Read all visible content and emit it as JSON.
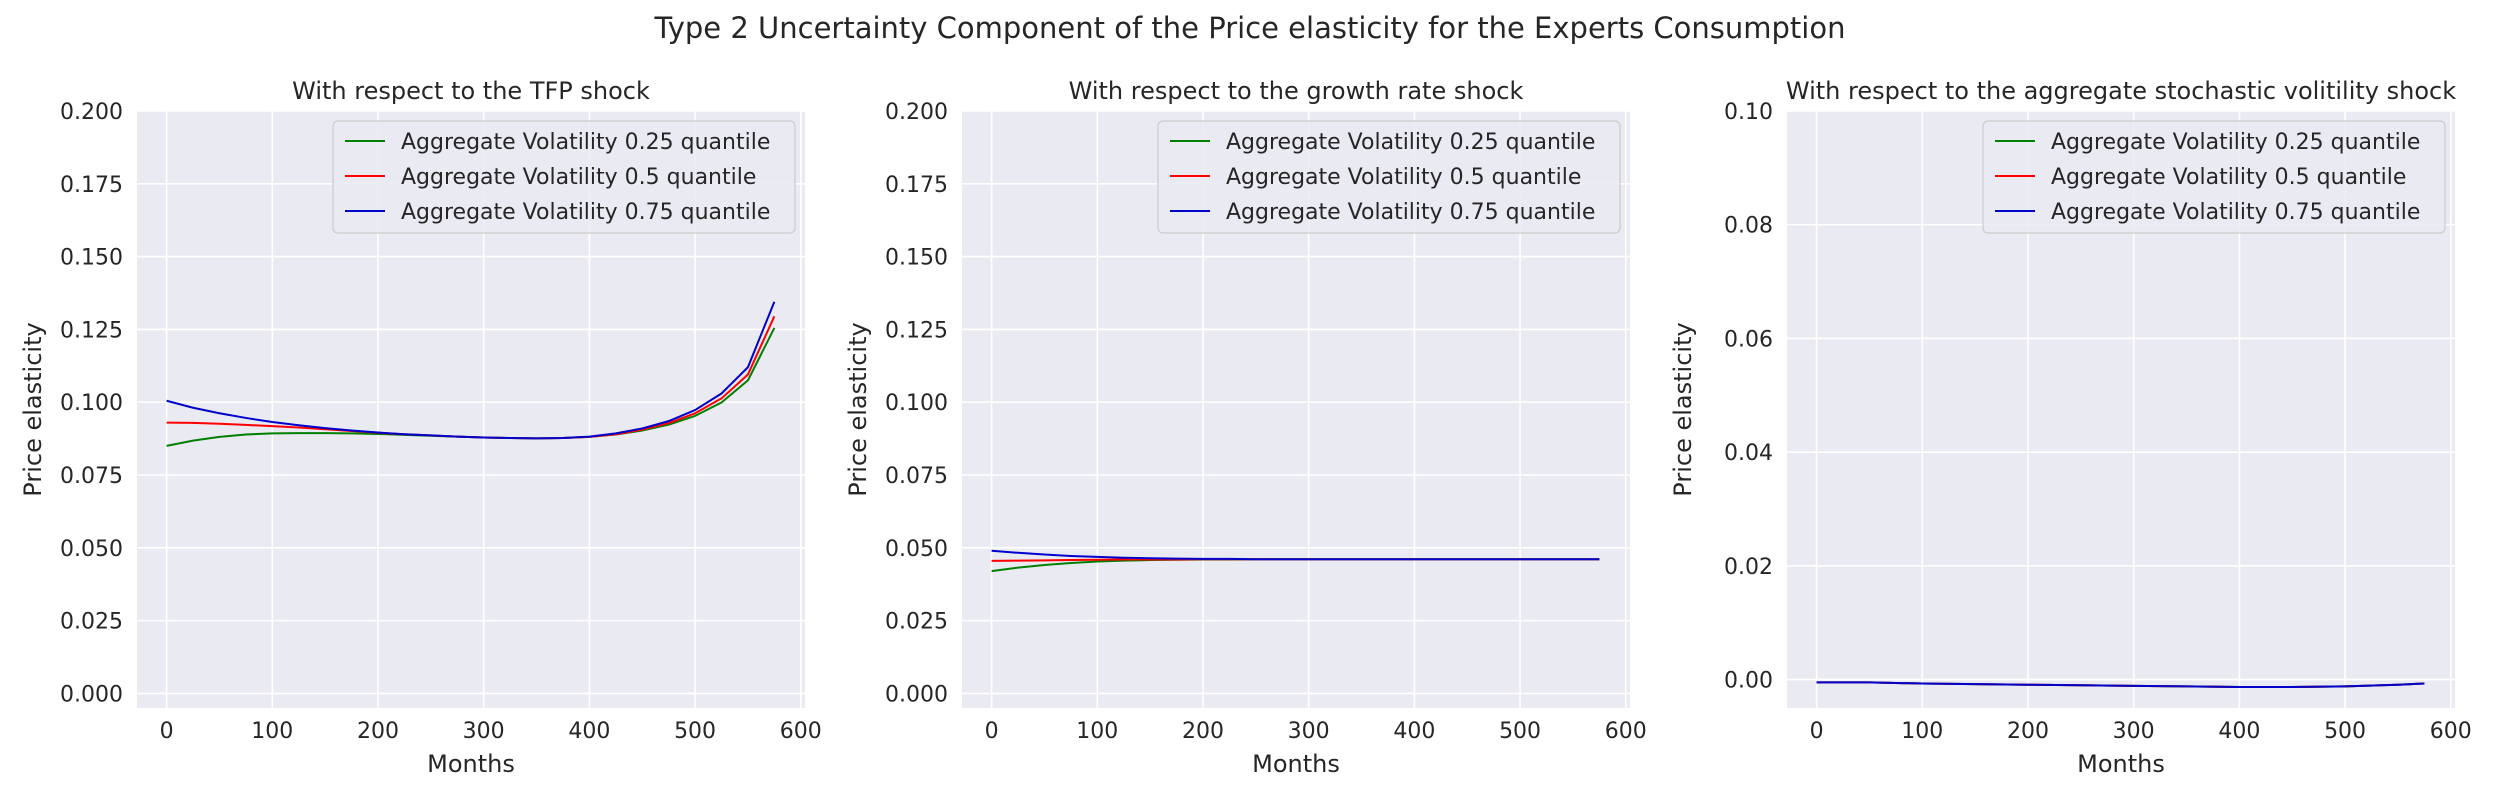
{
  "figure": {
    "title": "Type 2 Uncertainty Component of the Price elasticity for the Experts Consumption"
  },
  "style": {
    "axes_background": "#eaeaf2",
    "grid_color": "#ffffff",
    "text_color": "#262626",
    "series_colors": [
      "#008000",
      "#ff0000",
      "#0000cd"
    ]
  },
  "chart_data": [
    {
      "type": "line",
      "title": "With respect to the TFP shock",
      "xlabel": "Months",
      "ylabel": "Price elasticity",
      "xlim": [
        -28,
        604
      ],
      "ylim": [
        -0.005,
        0.2
      ],
      "xticks": [
        0,
        100,
        200,
        300,
        400,
        500,
        600
      ],
      "yticks": [
        0.0,
        0.025,
        0.05,
        0.075,
        0.1,
        0.125,
        0.15,
        0.175,
        0.2
      ],
      "ytick_labels": [
        "0.000",
        "0.025",
        "0.050",
        "0.075",
        "0.100",
        "0.125",
        "0.150",
        "0.175",
        "0.200"
      ],
      "grid": true,
      "legend": "top-right",
      "x": [
        0,
        25,
        50,
        75,
        100,
        125,
        150,
        175,
        200,
        225,
        250,
        275,
        300,
        325,
        350,
        375,
        400,
        425,
        450,
        475,
        500,
        525,
        550,
        575
      ],
      "series": [
        {
          "name": "Aggregate Volatility 0.25 quantile",
          "color": "#008000",
          "values": [
            0.085,
            0.0868,
            0.0881,
            0.0889,
            0.0893,
            0.0894,
            0.0894,
            0.0893,
            0.0891,
            0.0888,
            0.0885,
            0.0882,
            0.0879,
            0.0877,
            0.0876,
            0.0877,
            0.0881,
            0.0889,
            0.0903,
            0.0923,
            0.0953,
            0.0999,
            0.1075,
            0.1255
          ]
        },
        {
          "name": "Aggregate Volatility 0.5 quantile",
          "color": "#ff0000",
          "values": [
            0.093,
            0.0929,
            0.0926,
            0.0922,
            0.0918,
            0.0913,
            0.0907,
            0.0901,
            0.0895,
            0.089,
            0.0886,
            0.0882,
            0.0879,
            0.0877,
            0.0876,
            0.0877,
            0.0881,
            0.089,
            0.0906,
            0.0928,
            0.0962,
            0.1013,
            0.1095,
            0.1295
          ]
        },
        {
          "name": "Aggregate Volatility 0.75 quantile",
          "color": "#0000cd",
          "values": [
            0.1005,
            0.0981,
            0.0962,
            0.0946,
            0.0932,
            0.0921,
            0.0911,
            0.0903,
            0.0896,
            0.089,
            0.0886,
            0.0882,
            0.0879,
            0.0877,
            0.0876,
            0.0877,
            0.0882,
            0.0893,
            0.091,
            0.0935,
            0.0973,
            0.103,
            0.112,
            0.1345
          ]
        }
      ]
    },
    {
      "type": "line",
      "title": "With respect to the growth rate shock",
      "xlabel": "Months",
      "ylabel": "Price elasticity",
      "xlim": [
        -28,
        604
      ],
      "ylim": [
        -0.005,
        0.2
      ],
      "xticks": [
        0,
        100,
        200,
        300,
        400,
        500,
        600
      ],
      "yticks": [
        0.0,
        0.025,
        0.05,
        0.075,
        0.1,
        0.125,
        0.15,
        0.175,
        0.2
      ],
      "ytick_labels": [
        "0.000",
        "0.025",
        "0.050",
        "0.075",
        "0.100",
        "0.125",
        "0.150",
        "0.175",
        "0.200"
      ],
      "grid": true,
      "legend": "top-right",
      "x": [
        0,
        25,
        50,
        75,
        100,
        125,
        150,
        175,
        200,
        225,
        250,
        275,
        300,
        325,
        350,
        375,
        400,
        425,
        450,
        475,
        500,
        525,
        550,
        575
      ],
      "series": [
        {
          "name": "Aggregate Volatility 0.25 quantile",
          "color": "#008000",
          "values": [
            0.042,
            0.0432,
            0.0441,
            0.0448,
            0.0453,
            0.0456,
            0.0458,
            0.0459,
            0.046,
            0.046,
            0.0461,
            0.0461,
            0.0461,
            0.0461,
            0.0461,
            0.0461,
            0.0461,
            0.0461,
            0.0461,
            0.0461,
            0.0461,
            0.0461,
            0.0461,
            0.0461
          ]
        },
        {
          "name": "Aggregate Volatility 0.5 quantile",
          "color": "#ff0000",
          "values": [
            0.0455,
            0.0456,
            0.0457,
            0.0458,
            0.0459,
            0.046,
            0.046,
            0.046,
            0.0461,
            0.0461,
            0.0461,
            0.0461,
            0.0461,
            0.0461,
            0.0461,
            0.0461,
            0.0461,
            0.0461,
            0.0461,
            0.0461,
            0.0461,
            0.0461,
            0.0461,
            0.0461
          ]
        },
        {
          "name": "Aggregate Volatility 0.75 quantile",
          "color": "#0000cd",
          "values": [
            0.049,
            0.0483,
            0.0477,
            0.0472,
            0.0469,
            0.0466,
            0.0464,
            0.0463,
            0.0462,
            0.0462,
            0.0461,
            0.0461,
            0.0461,
            0.0461,
            0.0461,
            0.0461,
            0.0461,
            0.0461,
            0.0461,
            0.0461,
            0.0461,
            0.0461,
            0.0461,
            0.0461
          ]
        }
      ]
    },
    {
      "type": "line",
      "title": "With respect to the aggregate stochastic volitility shock",
      "xlabel": "Months",
      "ylabel": "Price elasticity",
      "xlim": [
        -28,
        604
      ],
      "ylim": [
        -0.005,
        0.1
      ],
      "xticks": [
        0,
        100,
        200,
        300,
        400,
        500,
        600
      ],
      "yticks": [
        0.0,
        0.02,
        0.04,
        0.06,
        0.08,
        0.1
      ],
      "ytick_labels": [
        "0.00",
        "0.02",
        "0.04",
        "0.06",
        "0.08",
        "0.10"
      ],
      "grid": true,
      "legend": "top-right",
      "x": [
        0,
        50,
        100,
        150,
        200,
        250,
        300,
        350,
        400,
        450,
        500,
        550,
        575
      ],
      "series": [
        {
          "name": "Aggregate Volatility 0.25 quantile",
          "color": "#008000",
          "values": [
            -0.0005,
            -0.0005,
            -0.0007,
            -0.0008,
            -0.0009,
            -0.001,
            -0.0011,
            -0.0012,
            -0.0013,
            -0.0013,
            -0.0012,
            -0.0009,
            -0.0007
          ]
        },
        {
          "name": "Aggregate Volatility 0.5 quantile",
          "color": "#ff0000",
          "values": [
            -0.0005,
            -0.0005,
            -0.0007,
            -0.0008,
            -0.0009,
            -0.001,
            -0.0011,
            -0.0012,
            -0.0013,
            -0.0013,
            -0.0012,
            -0.0009,
            -0.0007
          ]
        },
        {
          "name": "Aggregate Volatility 0.75 quantile",
          "color": "#0000cd",
          "values": [
            -0.0005,
            -0.0005,
            -0.0007,
            -0.0008,
            -0.0009,
            -0.001,
            -0.0011,
            -0.0012,
            -0.0013,
            -0.0013,
            -0.0012,
            -0.0009,
            -0.0007
          ]
        }
      ]
    }
  ]
}
